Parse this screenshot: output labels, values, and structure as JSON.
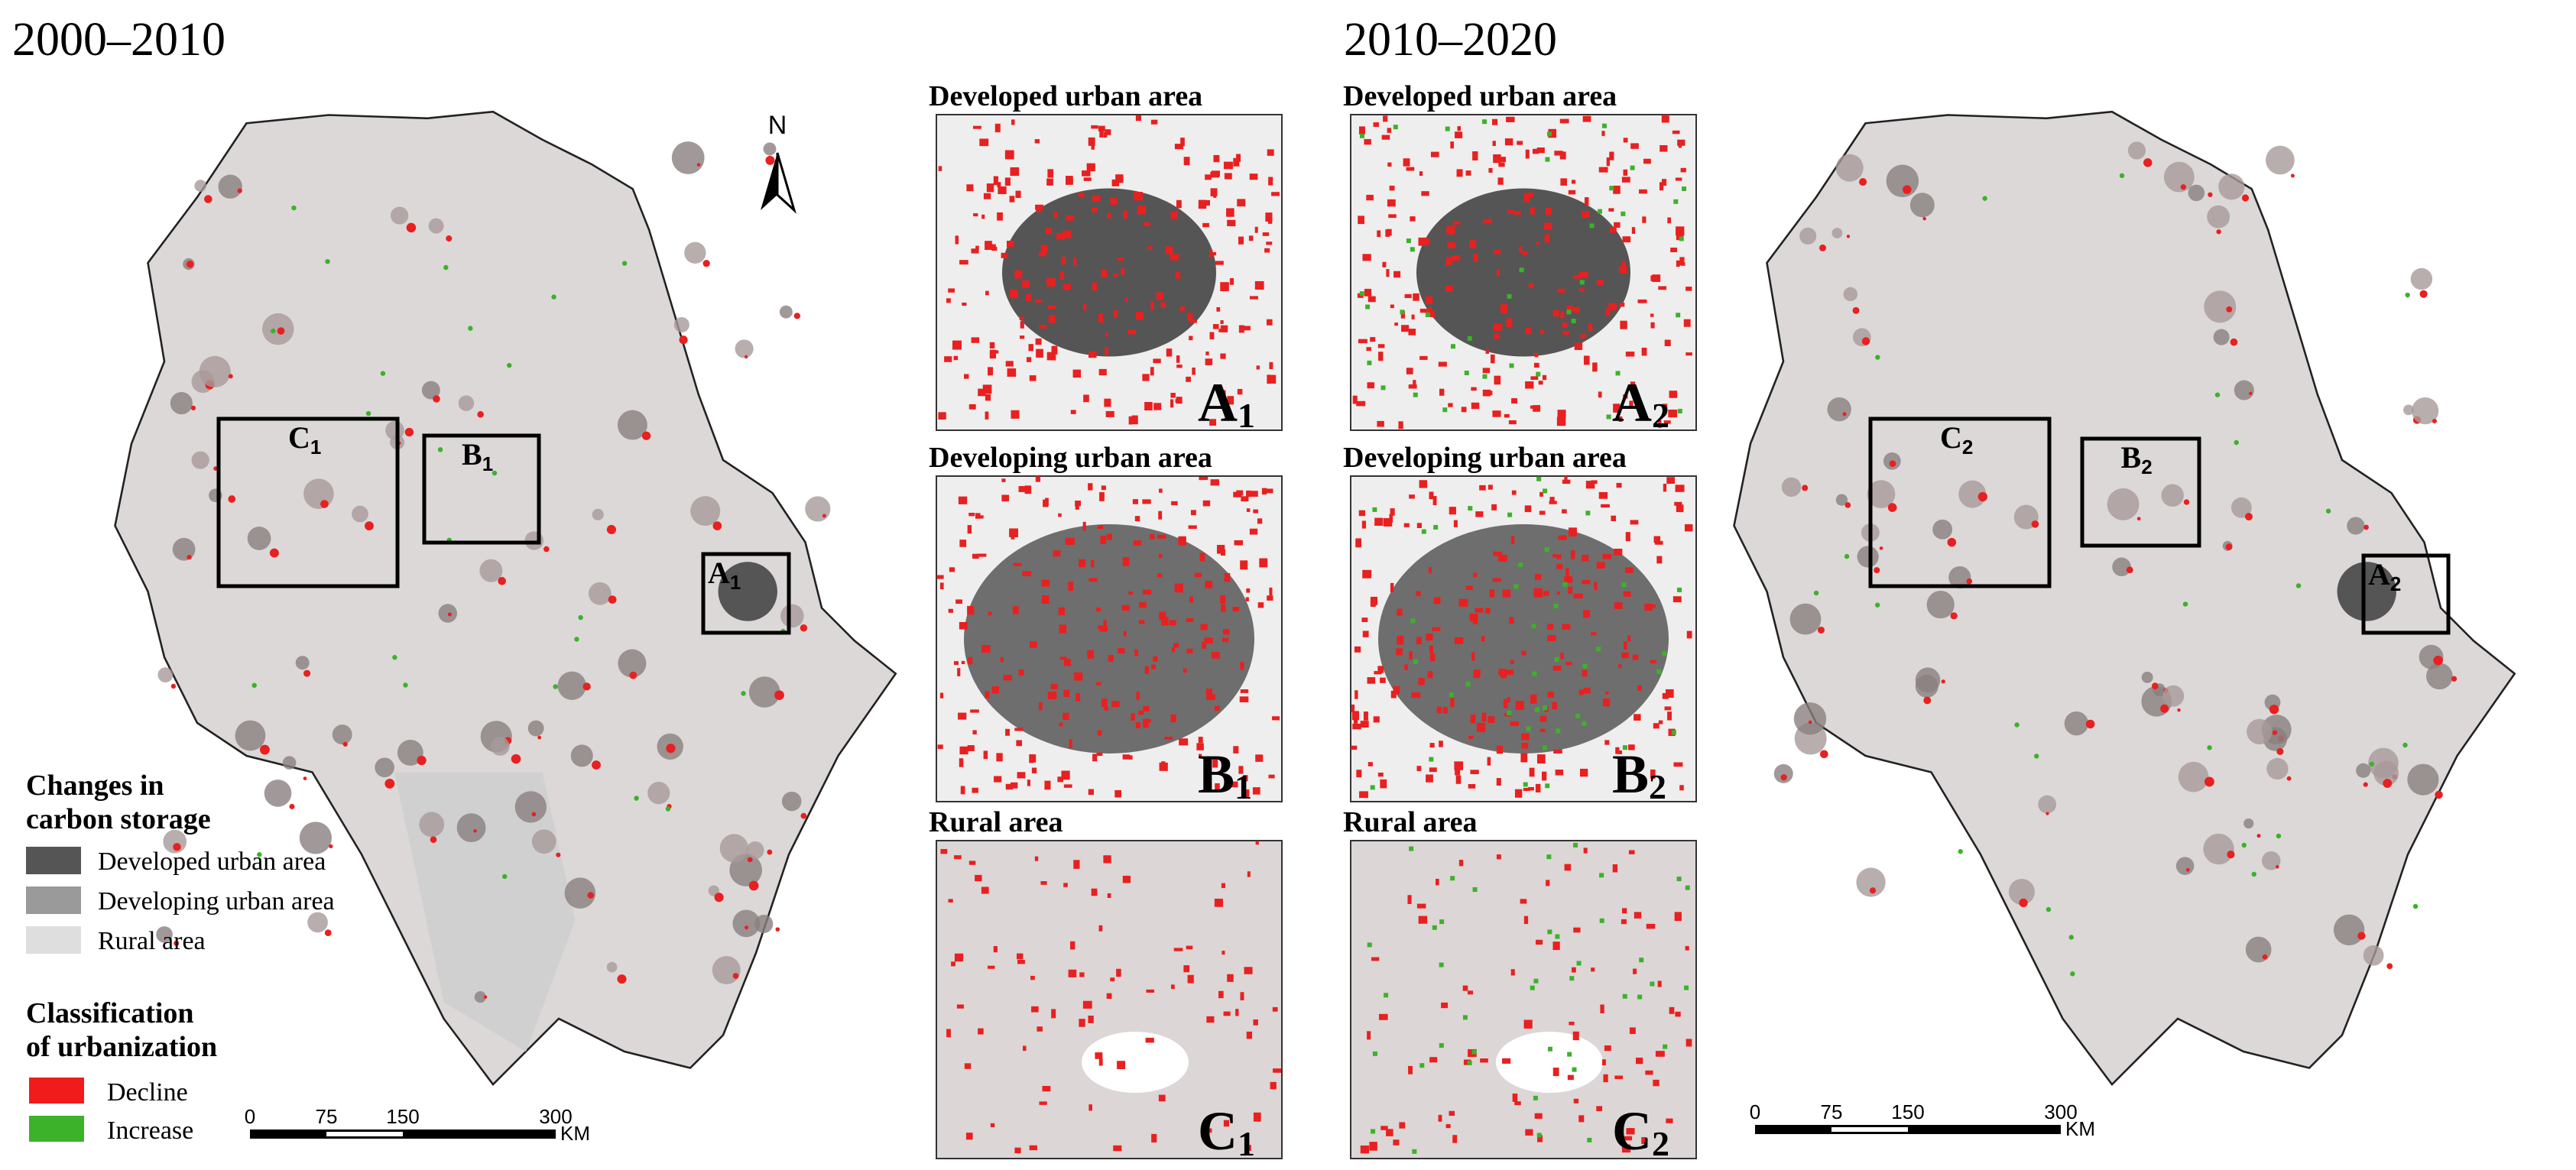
{
  "headings": {
    "left": "2000–2010",
    "right": "2010–2020"
  },
  "north": "N",
  "insets": {
    "titles": {
      "developed_left": "Developed urban area",
      "developed_right": "Developed urban area",
      "developing_left": "Developing urban area",
      "developing_right": "Developing urban area",
      "rural_left": "Rural area",
      "rural_right": "Rural area"
    },
    "labels": [
      {
        "letter": "A",
        "sub": "1"
      },
      {
        "letter": "A",
        "sub": "2"
      },
      {
        "letter": "B",
        "sub": "1"
      },
      {
        "letter": "B",
        "sub": "2"
      },
      {
        "letter": "C",
        "sub": "1"
      },
      {
        "letter": "C",
        "sub": "2"
      }
    ]
  },
  "map_boxes": {
    "left": [
      {
        "letter": "C",
        "sub": "1"
      },
      {
        "letter": "B",
        "sub": "1"
      },
      {
        "letter": "A",
        "sub": "1"
      }
    ],
    "right": [
      {
        "letter": "C",
        "sub": "2"
      },
      {
        "letter": "B",
        "sub": "2"
      },
      {
        "letter": "A",
        "sub": "2"
      }
    ]
  },
  "legend": {
    "title1": [
      "Changes in",
      "carbon storage"
    ],
    "items1": [
      "Developed urban area",
      "Developing urban area",
      "Rural area"
    ],
    "title2": [
      "Classification",
      "of urbanization"
    ],
    "items2": [
      "Decline",
      "Increase"
    ]
  },
  "scale_bar": {
    "ticks": [
      0,
      75,
      150,
      300
    ],
    "unit": "KM"
  }
}
